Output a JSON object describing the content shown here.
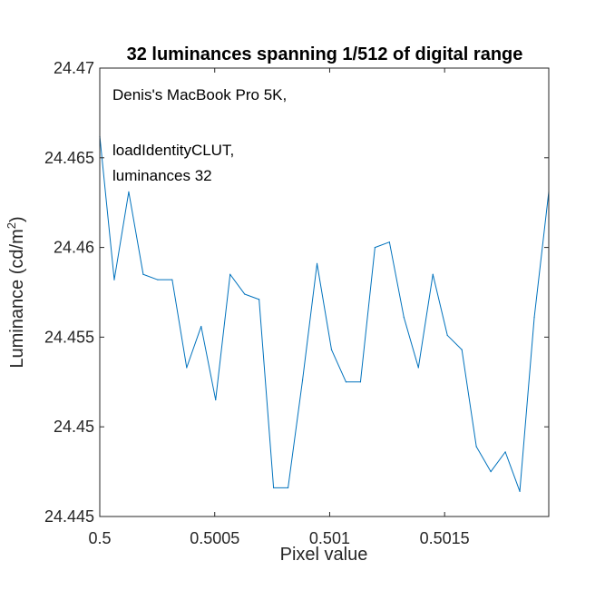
{
  "chart_data": {
    "type": "line",
    "title": "32 luminances spanning 1/512 of digital range",
    "xlabel": "Pixel value",
    "ylabel_main": "Luminance (cd/m",
    "ylabel_sup": "2",
    "ylabel_close": ")",
    "xlim": [
      0.5,
      0.501953
    ],
    "ylim": [
      24.445,
      24.47
    ],
    "xticks": [
      {
        "value": 0.5,
        "label": "0.5"
      },
      {
        "value": 0.5005,
        "label": "0.5005"
      },
      {
        "value": 0.501,
        "label": "0.501"
      },
      {
        "value": 0.5015,
        "label": "0.5015"
      }
    ],
    "yticks": [
      {
        "value": 24.445,
        "label": "24.445"
      },
      {
        "value": 24.45,
        "label": "24.45"
      },
      {
        "value": 24.455,
        "label": "24.455"
      },
      {
        "value": 24.46,
        "label": "24.46"
      },
      {
        "value": 24.465,
        "label": "24.465"
      },
      {
        "value": 24.47,
        "label": "24.47"
      }
    ],
    "annotations": [
      "Denis's MacBook Pro 5K,",
      "loadIdentityCLUT,",
      "luminances 32"
    ],
    "grid": false,
    "line_color": "#0072BD",
    "series": [
      {
        "x": [
          0.5,
          0.500063,
          0.500126,
          0.500189,
          0.500252,
          0.500315,
          0.500378,
          0.500441,
          0.500504,
          0.500567,
          0.50063,
          0.500693,
          0.500756,
          0.500819,
          0.500882,
          0.500945,
          0.501008,
          0.501071,
          0.501134,
          0.501197,
          0.50126,
          0.501323,
          0.501386,
          0.501449,
          0.501512,
          0.501575,
          0.501638,
          0.501701,
          0.501764,
          0.501827,
          0.50189,
          0.501953
        ],
        "y": [
          24.4662,
          24.4582,
          24.4631,
          24.4585,
          24.4582,
          24.4582,
          24.4533,
          24.4556,
          24.4515,
          24.4585,
          24.4574,
          24.4571,
          24.4466,
          24.4466,
          24.4526,
          24.4591,
          24.4543,
          24.4525,
          24.4525,
          24.46,
          24.4603,
          24.4561,
          24.4533,
          24.4585,
          24.4551,
          24.4543,
          24.4489,
          24.4475,
          24.4486,
          24.4464,
          24.4561,
          24.4631
        ]
      }
    ]
  }
}
